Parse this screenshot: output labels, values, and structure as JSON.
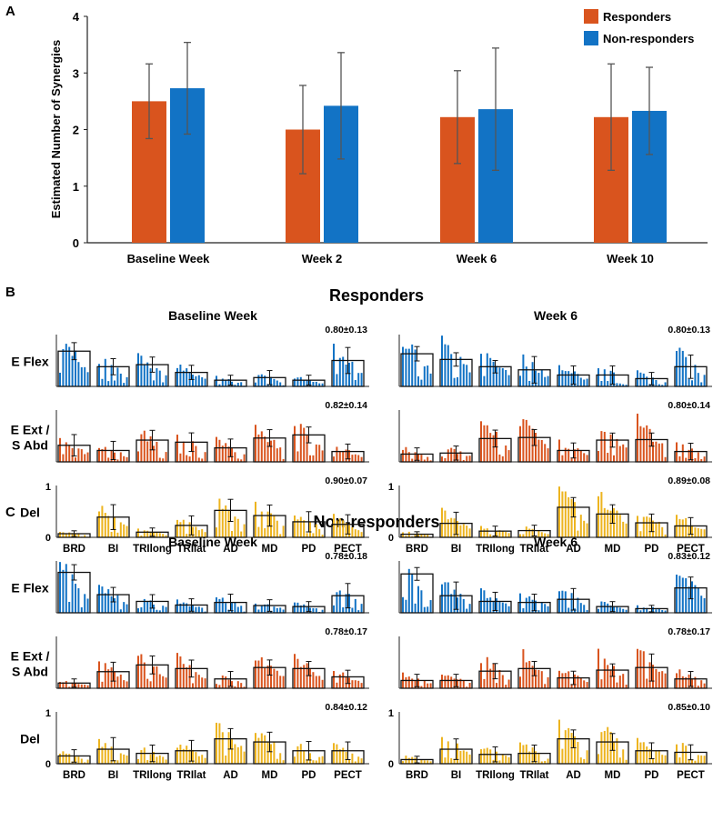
{
  "panel_labels": {
    "a": "A",
    "b": "B",
    "c": "C"
  },
  "colors": {
    "responders": "#D9541E",
    "non_responders": "#1273C5",
    "del": "#EDB41F",
    "axis": "#222222",
    "error": "#555555"
  },
  "chart_data": [
    {
      "id": "A",
      "type": "bar",
      "ylabel": "Estimated Number of Synergies",
      "ylim": [
        0,
        4
      ],
      "yticks": [
        0,
        1,
        2,
        3,
        4
      ],
      "categories": [
        "Baseline Week",
        "Week 2",
        "Week 6",
        "Week 10"
      ],
      "series": [
        {
          "name": "Responders",
          "values": [
            2.5,
            2.0,
            2.22,
            2.22
          ],
          "sd": [
            0.66,
            0.78,
            0.82,
            0.94
          ]
        },
        {
          "name": "Non-responders",
          "values": [
            2.73,
            2.42,
            2.36,
            2.33
          ],
          "sd": [
            0.81,
            0.94,
            1.08,
            0.77
          ]
        }
      ],
      "legend": "top-right"
    },
    {
      "id": "B",
      "type": "bar",
      "title": "Responders",
      "muscles": [
        "BRD",
        "BI",
        "TRIlong",
        "TRIlat",
        "AD",
        "MD",
        "PD",
        "PECT"
      ],
      "yticks_del": [
        "0",
        "1"
      ],
      "rows": [
        "E Flex",
        "E Ext /\nS Abd",
        "Del"
      ],
      "columns": [
        "Baseline Week",
        "Week 6"
      ],
      "similarity": [
        [
          "0.80±0.13",
          "0.82±0.14",
          "0.90±0.07"
        ],
        [
          "0.80±0.13",
          "0.80±0.14",
          "0.89±0.08"
        ]
      ],
      "means": [
        [
          [
            0.68,
            0.38,
            0.42,
            0.27,
            0.12,
            0.17,
            0.12,
            0.5
          ],
          [
            0.32,
            0.22,
            0.42,
            0.38,
            0.27,
            0.46,
            0.52,
            0.2
          ],
          [
            0.07,
            0.39,
            0.1,
            0.23,
            0.52,
            0.42,
            0.3,
            0.25
          ]
        ],
        [
          [
            0.63,
            0.52,
            0.38,
            0.32,
            0.22,
            0.22,
            0.15,
            0.38
          ],
          [
            0.15,
            0.17,
            0.45,
            0.47,
            0.22,
            0.42,
            0.43,
            0.2
          ],
          [
            0.06,
            0.27,
            0.12,
            0.13,
            0.58,
            0.45,
            0.28,
            0.22
          ]
        ]
      ]
    },
    {
      "id": "C",
      "type": "bar",
      "title": "Non-responders",
      "muscles": [
        "BRD",
        "BI",
        "TRIlong",
        "TRIlat",
        "AD",
        "MD",
        "PD",
        "PECT"
      ],
      "yticks_del": [
        "0",
        "1"
      ],
      "rows": [
        "E Flex",
        "E Ext /\nS Abd",
        "Del"
      ],
      "columns": [
        "Baseline Week",
        "Week 6"
      ],
      "similarity": [
        [
          "0.78±0.18",
          "0.78±0.17",
          "0.84±0.12"
        ],
        [
          "0.83±0.12",
          "0.78±0.17",
          "0.85±0.10"
        ]
      ],
      "means": [
        [
          [
            0.78,
            0.35,
            0.22,
            0.15,
            0.2,
            0.14,
            0.12,
            0.33
          ],
          [
            0.1,
            0.32,
            0.45,
            0.38,
            0.18,
            0.4,
            0.38,
            0.22
          ],
          [
            0.15,
            0.28,
            0.2,
            0.25,
            0.48,
            0.42,
            0.25,
            0.25
          ]
        ],
        [
          [
            0.75,
            0.33,
            0.22,
            0.2,
            0.26,
            0.12,
            0.08,
            0.48
          ],
          [
            0.15,
            0.15,
            0.33,
            0.38,
            0.2,
            0.35,
            0.4,
            0.18
          ],
          [
            0.08,
            0.28,
            0.18,
            0.2,
            0.48,
            0.42,
            0.25,
            0.22
          ]
        ]
      ]
    }
  ]
}
